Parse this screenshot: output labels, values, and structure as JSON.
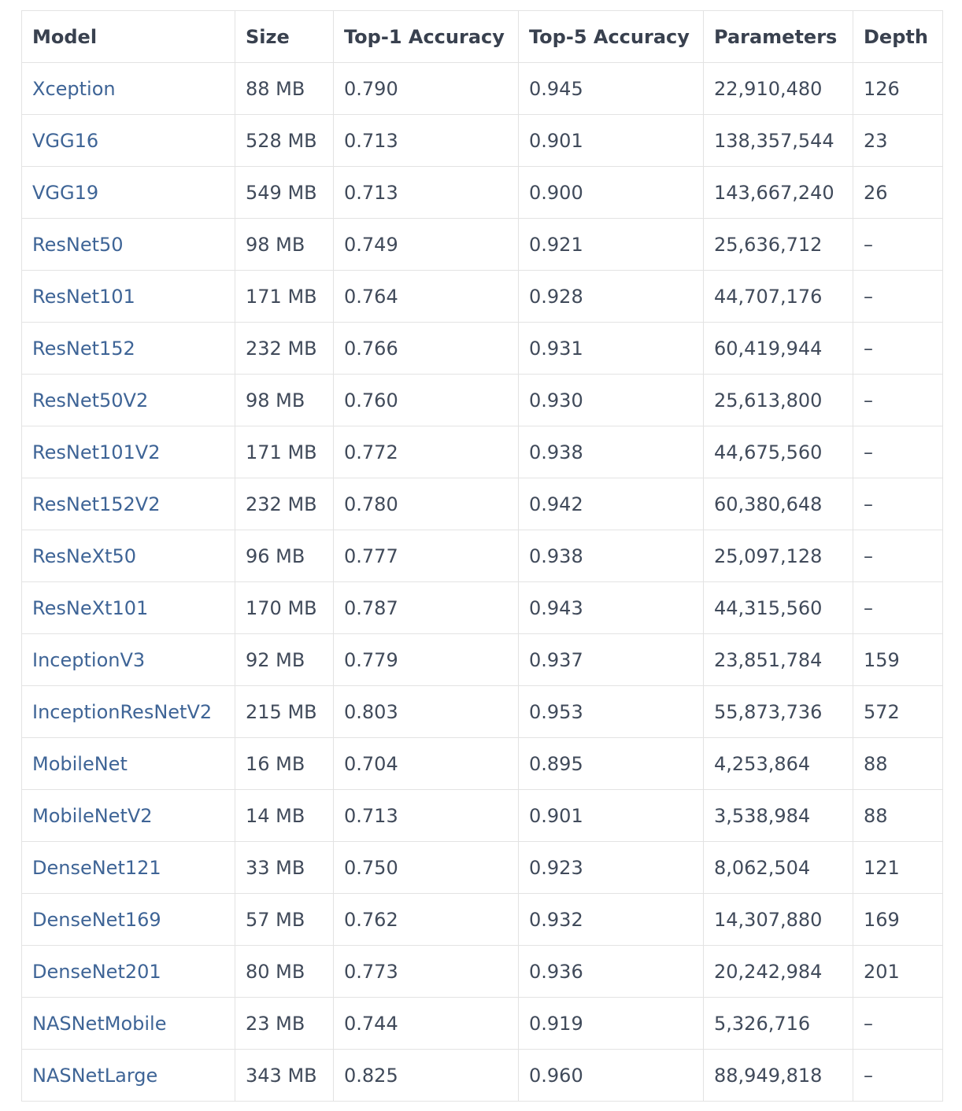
{
  "table": {
    "headers": [
      "Model",
      "Size",
      "Top-1 Accuracy",
      "Top-5 Accuracy",
      "Parameters",
      "Depth"
    ],
    "rows": [
      [
        "Xception",
        "88 MB",
        "0.790",
        "0.945",
        "22,910,480",
        "126"
      ],
      [
        "VGG16",
        "528 MB",
        "0.713",
        "0.901",
        "138,357,544",
        "23"
      ],
      [
        "VGG19",
        "549 MB",
        "0.713",
        "0.900",
        "143,667,240",
        "26"
      ],
      [
        "ResNet50",
        "98 MB",
        "0.749",
        "0.921",
        "25,636,712",
        "–"
      ],
      [
        "ResNet101",
        "171 MB",
        "0.764",
        "0.928",
        "44,707,176",
        "–"
      ],
      [
        "ResNet152",
        "232 MB",
        "0.766",
        "0.931",
        "60,419,944",
        "–"
      ],
      [
        "ResNet50V2",
        "98 MB",
        "0.760",
        "0.930",
        "25,613,800",
        "–"
      ],
      [
        "ResNet101V2",
        "171 MB",
        "0.772",
        "0.938",
        "44,675,560",
        "–"
      ],
      [
        "ResNet152V2",
        "232 MB",
        "0.780",
        "0.942",
        "60,380,648",
        "–"
      ],
      [
        "ResNeXt50",
        "96 MB",
        "0.777",
        "0.938",
        "25,097,128",
        "–"
      ],
      [
        "ResNeXt101",
        "170 MB",
        "0.787",
        "0.943",
        "44,315,560",
        "–"
      ],
      [
        "InceptionV3",
        "92 MB",
        "0.779",
        "0.937",
        "23,851,784",
        "159"
      ],
      [
        "InceptionResNetV2",
        "215 MB",
        "0.803",
        "0.953",
        "55,873,736",
        "572"
      ],
      [
        "MobileNet",
        "16 MB",
        "0.704",
        "0.895",
        "4,253,864",
        "88"
      ],
      [
        "MobileNetV2",
        "14 MB",
        "0.713",
        "0.901",
        "3,538,984",
        "88"
      ],
      [
        "DenseNet121",
        "33 MB",
        "0.750",
        "0.923",
        "8,062,504",
        "121"
      ],
      [
        "DenseNet169",
        "57 MB",
        "0.762",
        "0.932",
        "14,307,880",
        "169"
      ],
      [
        "DenseNet201",
        "80 MB",
        "0.773",
        "0.936",
        "20,242,984",
        "201"
      ],
      [
        "NASNetMobile",
        "23 MB",
        "0.744",
        "0.919",
        "5,326,716",
        "–"
      ],
      [
        "NASNetLarge",
        "343 MB",
        "0.825",
        "0.960",
        "88,949,818",
        "–"
      ]
    ]
  },
  "colors": {
    "link": "#3e6496",
    "text": "#404a5a",
    "header_text": "#39414f",
    "border": "#e3e3e3",
    "background": "#ffffff"
  }
}
